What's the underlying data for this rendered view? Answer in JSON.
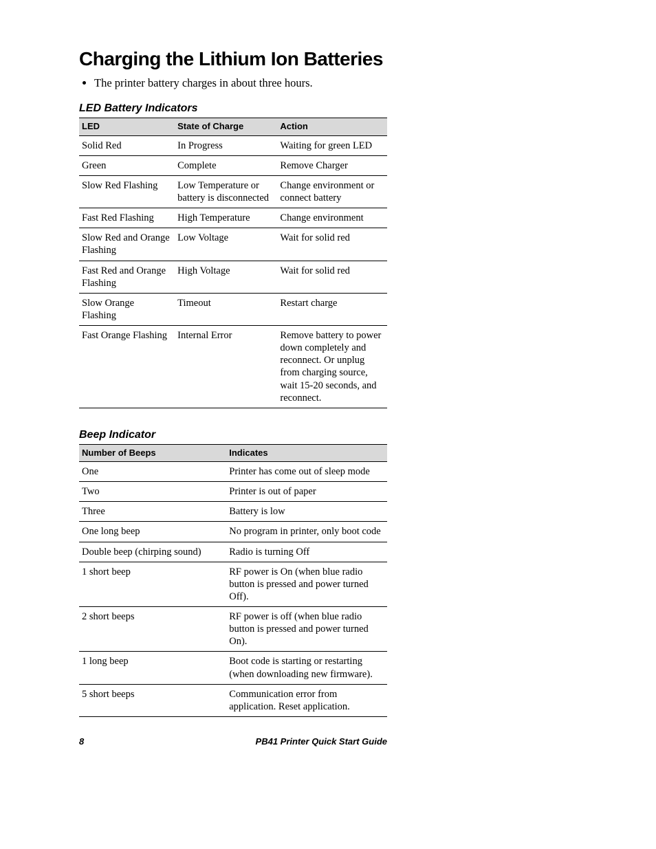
{
  "title": "Charging the Lithium Ion Batteries",
  "bullet": "The printer battery charges in about three hours.",
  "table1": {
    "caption": "LED Battery Indicators",
    "headers": [
      "LED",
      "State of Charge",
      "Action"
    ],
    "colWidths": [
      "140px",
      "148px",
      "160px"
    ],
    "rows": [
      [
        "Solid Red",
        "In Progress",
        "Waiting for green LED"
      ],
      [
        "Green",
        "Complete",
        "Remove Charger"
      ],
      [
        "Slow Red Flashing",
        "Low Temperature or battery is disconnected",
        "Change environment or connect battery"
      ],
      [
        "Fast Red Flashing",
        "High Temperature",
        "Change environment"
      ],
      [
        "Slow Red and Orange Flashing",
        "Low Voltage",
        "Wait for solid red"
      ],
      [
        "Fast Red and Orange Flashing",
        "High Voltage",
        "Wait for solid red"
      ],
      [
        "Slow Orange Flashing",
        "Timeout",
        "Restart charge"
      ],
      [
        "Fast Orange Flashing",
        "Internal Error",
        "Remove battery to power down completely and reconnect. Or unplug from charging source, wait 15-20 seconds, and reconnect."
      ]
    ]
  },
  "table2": {
    "caption": "Beep Indicator",
    "headers": [
      "Number of Beeps",
      "Indicates"
    ],
    "colWidths": [
      "215px",
      "233px"
    ],
    "rows": [
      [
        "One",
        "Printer has come out of sleep mode"
      ],
      [
        "Two",
        "Printer is out of paper"
      ],
      [
        "Three",
        "Battery is low"
      ],
      [
        "One long beep",
        "No program in printer, only boot code"
      ],
      [
        "Double beep (chirping sound)",
        "Radio is turning Off"
      ],
      [
        "1 short beep",
        "RF power is On (when blue radio button is pressed and power turned Off)."
      ],
      [
        "2 short beeps",
        "RF power is off (when blue radio button is pressed and power turned On)."
      ],
      [
        "1 long beep",
        "Boot code is starting or restarting (when downloading new firmware)."
      ],
      [
        "5 short beeps",
        "Communication error from application. Reset application."
      ]
    ]
  },
  "footer": {
    "pageNumber": "8",
    "docTitle": "PB41 Printer Quick Start Guide"
  }
}
